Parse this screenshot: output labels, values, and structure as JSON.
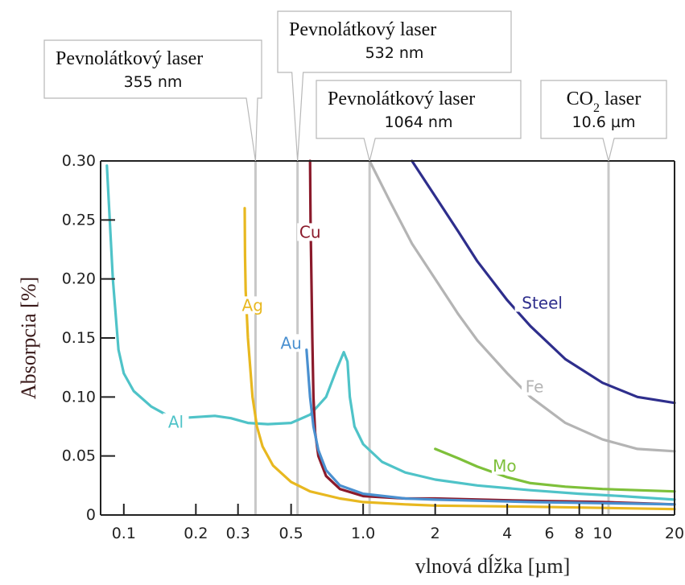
{
  "chart_data": {
    "type": "line",
    "x_scale": "log",
    "xlim": [
      0.08,
      20
    ],
    "ylim": [
      0,
      0.3
    ],
    "grid": false,
    "ylabel": "Absorpcia [%]",
    "xlabel": "vlnová dĺžka [µm]",
    "x_ticks": [
      {
        "value": 0.1,
        "label": "0.1"
      },
      {
        "value": 0.2,
        "label": "0.2"
      },
      {
        "value": 0.3,
        "label": "0.3"
      },
      {
        "value": 0.5,
        "label": "0.5"
      },
      {
        "value": 1.0,
        "label": "1.0"
      },
      {
        "value": 2,
        "label": "2"
      },
      {
        "value": 4,
        "label": "4"
      },
      {
        "value": 6,
        "label": "6"
      },
      {
        "value": 8,
        "label": "8"
      },
      {
        "value": 10,
        "label": "10"
      },
      {
        "value": 20,
        "label": "20"
      }
    ],
    "y_ticks": [
      {
        "value": 0,
        "label": "0"
      },
      {
        "value": 0.05,
        "label": "0.05"
      },
      {
        "value": 0.1,
        "label": "0.10"
      },
      {
        "value": 0.15,
        "label": "0.15"
      },
      {
        "value": 0.2,
        "label": "0.20"
      },
      {
        "value": 0.25,
        "label": "0.25"
      },
      {
        "value": 0.3,
        "label": "0.30"
      }
    ],
    "laser_lines": [
      {
        "title": "Pevnolátkový laser",
        "wavelength_label": "355 nm",
        "x": 0.355
      },
      {
        "title": "Pevnolátkový laser",
        "wavelength_label": "532 nm",
        "x": 0.532
      },
      {
        "title": "Pevnolátkový laser",
        "wavelength_label": "1064 nm",
        "x": 1.064
      },
      {
        "title": "CO2 laser",
        "title_main": "CO",
        "title_sub": "2",
        "title_rest": " laser",
        "wavelength_label": "10.6 µm",
        "x": 10.6
      }
    ],
    "series": [
      {
        "name": "Al",
        "color": "#4fc3c8",
        "points": [
          [
            0.085,
            0.296
          ],
          [
            0.09,
            0.2
          ],
          [
            0.095,
            0.14
          ],
          [
            0.1,
            0.12
          ],
          [
            0.11,
            0.105
          ],
          [
            0.13,
            0.092
          ],
          [
            0.15,
            0.085
          ],
          [
            0.17,
            0.082
          ],
          [
            0.2,
            0.083
          ],
          [
            0.24,
            0.084
          ],
          [
            0.28,
            0.082
          ],
          [
            0.33,
            0.078
          ],
          [
            0.4,
            0.077
          ],
          [
            0.5,
            0.078
          ],
          [
            0.6,
            0.085
          ],
          [
            0.7,
            0.1
          ],
          [
            0.78,
            0.125
          ],
          [
            0.83,
            0.138
          ],
          [
            0.86,
            0.13
          ],
          [
            0.88,
            0.1
          ],
          [
            0.92,
            0.075
          ],
          [
            1.0,
            0.06
          ],
          [
            1.2,
            0.045
          ],
          [
            1.5,
            0.036
          ],
          [
            2,
            0.03
          ],
          [
            3,
            0.025
          ],
          [
            5,
            0.021
          ],
          [
            8,
            0.018
          ],
          [
            12,
            0.016
          ],
          [
            20,
            0.013
          ]
        ]
      },
      {
        "name": "Ag",
        "color": "#e8b820",
        "points": [
          [
            0.32,
            0.26
          ],
          [
            0.321,
            0.22
          ],
          [
            0.323,
            0.19
          ],
          [
            0.33,
            0.15
          ],
          [
            0.345,
            0.1
          ],
          [
            0.36,
            0.075
          ],
          [
            0.38,
            0.058
          ],
          [
            0.42,
            0.042
          ],
          [
            0.5,
            0.028
          ],
          [
            0.6,
            0.02
          ],
          [
            0.8,
            0.014
          ],
          [
            1.0,
            0.011
          ],
          [
            1.5,
            0.009
          ],
          [
            2,
            0.008
          ],
          [
            5,
            0.007
          ],
          [
            10,
            0.006
          ],
          [
            20,
            0.005
          ]
        ]
      },
      {
        "name": "Cu",
        "color": "#8b1a2b",
        "points": [
          [
            0.6,
            0.3
          ],
          [
            0.603,
            0.25
          ],
          [
            0.608,
            0.2
          ],
          [
            0.613,
            0.15
          ],
          [
            0.62,
            0.1
          ],
          [
            0.63,
            0.07
          ],
          [
            0.65,
            0.05
          ],
          [
            0.7,
            0.033
          ],
          [
            0.8,
            0.022
          ],
          [
            1.0,
            0.016
          ],
          [
            1.5,
            0.014
          ],
          [
            2,
            0.014
          ],
          [
            5,
            0.012
          ],
          [
            10,
            0.011
          ],
          [
            20,
            0.009
          ]
        ]
      },
      {
        "name": "Au",
        "color": "#4a90d0",
        "points": [
          [
            0.58,
            0.14
          ],
          [
            0.6,
            0.1
          ],
          [
            0.62,
            0.075
          ],
          [
            0.65,
            0.055
          ],
          [
            0.7,
            0.038
          ],
          [
            0.8,
            0.025
          ],
          [
            1.0,
            0.018
          ],
          [
            1.5,
            0.014
          ],
          [
            2,
            0.013
          ],
          [
            5,
            0.011
          ],
          [
            10,
            0.01
          ],
          [
            20,
            0.009
          ]
        ]
      },
      {
        "name": "Steel",
        "color": "#2e2e8c",
        "points": [
          [
            1.6,
            0.3
          ],
          [
            2,
            0.27
          ],
          [
            2.5,
            0.24
          ],
          [
            3,
            0.215
          ],
          [
            4,
            0.182
          ],
          [
            5,
            0.16
          ],
          [
            7,
            0.132
          ],
          [
            10,
            0.112
          ],
          [
            14,
            0.1
          ],
          [
            20,
            0.095
          ]
        ]
      },
      {
        "name": "Fe",
        "color": "#b4b4b4",
        "points": [
          [
            1.064,
            0.3
          ],
          [
            1.3,
            0.265
          ],
          [
            1.6,
            0.23
          ],
          [
            2,
            0.2
          ],
          [
            2.5,
            0.17
          ],
          [
            3,
            0.148
          ],
          [
            4,
            0.12
          ],
          [
            5,
            0.1
          ],
          [
            7,
            0.078
          ],
          [
            10,
            0.064
          ],
          [
            14,
            0.056
          ],
          [
            20,
            0.054
          ]
        ]
      },
      {
        "name": "Mo",
        "color": "#7ec03a",
        "points": [
          [
            2,
            0.056
          ],
          [
            2.5,
            0.048
          ],
          [
            3,
            0.041
          ],
          [
            4,
            0.032
          ],
          [
            5,
            0.027
          ],
          [
            7,
            0.024
          ],
          [
            10,
            0.022
          ],
          [
            14,
            0.021
          ],
          [
            20,
            0.02
          ]
        ]
      }
    ],
    "series_labels": [
      {
        "name": "Al",
        "x": 0.165,
        "y": 0.076,
        "color": "#4fc3c8"
      },
      {
        "name": "Ag",
        "x": 0.345,
        "y": 0.175,
        "color": "#e8b820"
      },
      {
        "name": "Au",
        "x": 0.5,
        "y": 0.143,
        "color": "#4a90d0"
      },
      {
        "name": "Cu",
        "x": 0.6,
        "y": 0.237,
        "color": "#8b1a2b"
      },
      {
        "name": "Steel",
        "x": 5.6,
        "y": 0.177,
        "color": "#2e2e8c"
      },
      {
        "name": "Fe",
        "x": 5.2,
        "y": 0.106,
        "color": "#b4b4b4"
      },
      {
        "name": "Mo",
        "x": 3.9,
        "y": 0.039,
        "color": "#7ec03a"
      }
    ],
    "colors": {
      "axis": "#222222",
      "laser_line": "#c8c8c8",
      "ylabel": "#3a1a1a"
    }
  }
}
